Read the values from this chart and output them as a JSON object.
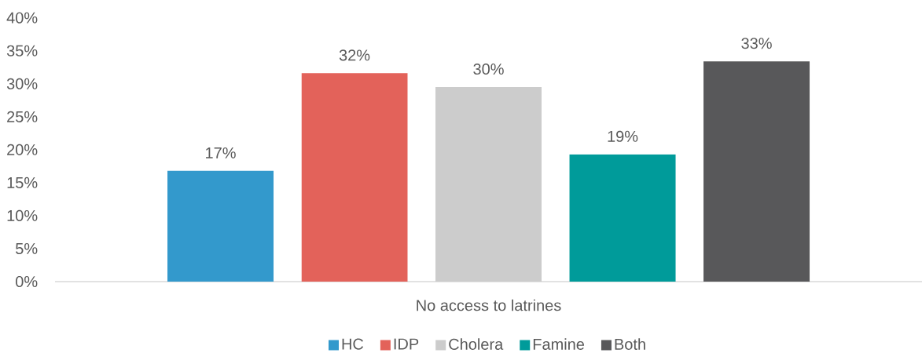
{
  "chart_data": {
    "type": "bar",
    "categories": [
      "No access to latrines"
    ],
    "series": [
      {
        "name": "HC",
        "color": "#3399CC",
        "values": [
          16.8
        ],
        "value_labels": [
          "17%"
        ]
      },
      {
        "name": "IDP",
        "color": "#E3625A",
        "values": [
          31.6
        ],
        "value_labels": [
          "32%"
        ]
      },
      {
        "name": "Cholera",
        "color": "#CCCCCC",
        "values": [
          29.5
        ],
        "value_labels": [
          "30%"
        ]
      },
      {
        "name": "Famine",
        "color": "#009B9A",
        "values": [
          19.3
        ],
        "value_labels": [
          "19%"
        ]
      },
      {
        "name": "Both",
        "color": "#58585A",
        "values": [
          33.4
        ],
        "value_labels": [
          "33%"
        ]
      }
    ],
    "ylim": [
      0,
      40
    ],
    "yticks": [
      {
        "value": 0,
        "label": "0%"
      },
      {
        "value": 5,
        "label": "5%"
      },
      {
        "value": 10,
        "label": "10%"
      },
      {
        "value": 15,
        "label": "15%"
      },
      {
        "value": 20,
        "label": "20%"
      },
      {
        "value": 25,
        "label": "25%"
      },
      {
        "value": 30,
        "label": "30%"
      },
      {
        "value": 35,
        "label": "35%"
      },
      {
        "value": 40,
        "label": "40%"
      }
    ],
    "legend": "bottom"
  }
}
